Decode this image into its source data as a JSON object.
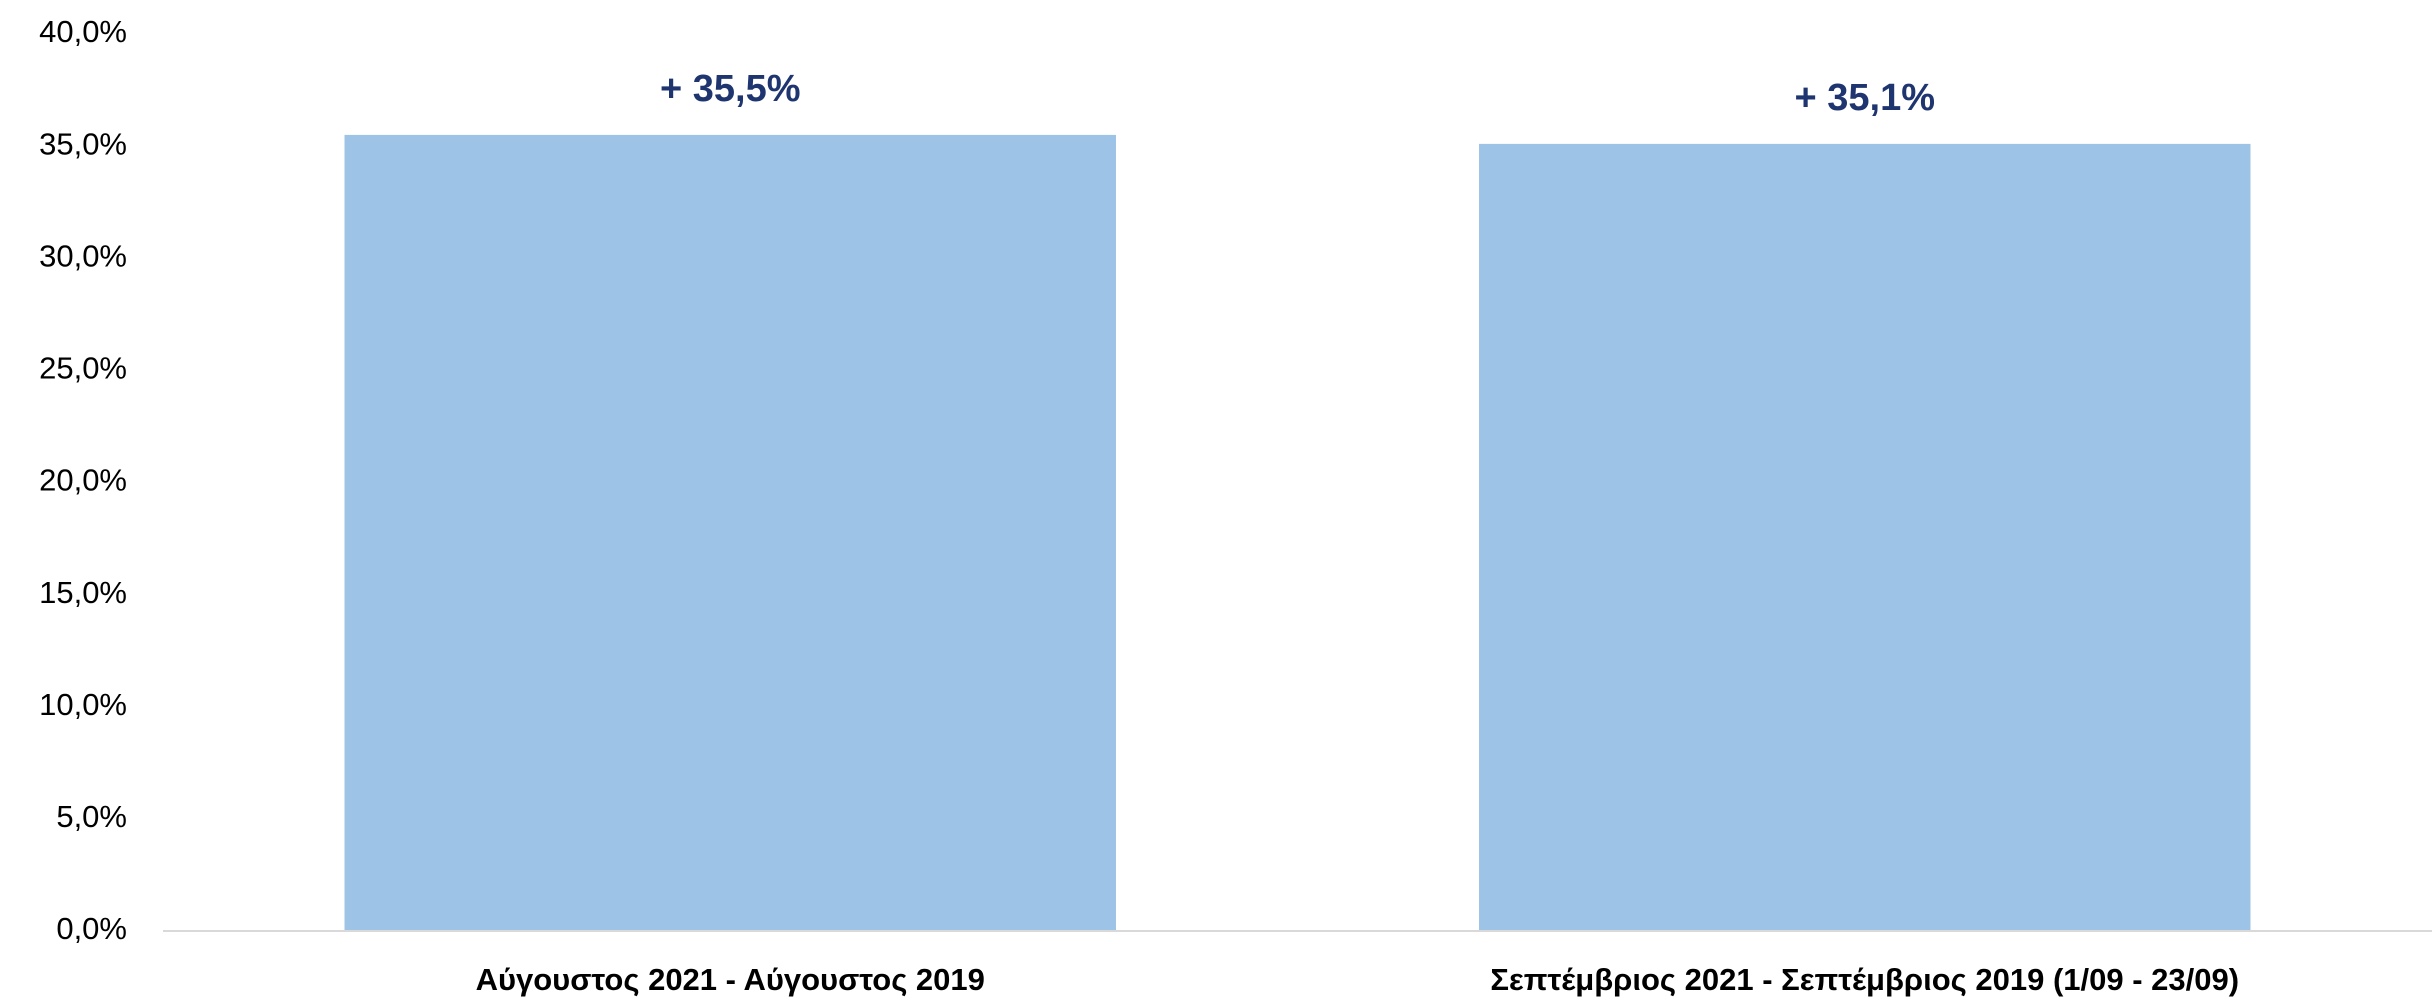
{
  "chart_data": {
    "type": "bar",
    "categories": [
      "Αύγουστος 2021 - Αύγουστος 2019",
      "Σεπτέμβριος 2021 - Σεπτέμβριος 2019 (1/09 - 23/09)"
    ],
    "values": [
      35.5,
      35.1
    ],
    "value_labels": [
      "+ 35,5%",
      "+ 35,1%"
    ],
    "color": "#9dc3e6",
    "ylim": [
      0,
      40
    ],
    "yticks": [
      {
        "value": 0,
        "label": "0,0%"
      },
      {
        "value": 5,
        "label": "5,0%"
      },
      {
        "value": 10,
        "label": "10,0%"
      },
      {
        "value": 15,
        "label": "15,0%"
      },
      {
        "value": 20,
        "label": "20,0%"
      },
      {
        "value": 25,
        "label": "25,0%"
      },
      {
        "value": 30,
        "label": "30,0%"
      },
      {
        "value": 35,
        "label": "35,0%"
      },
      {
        "value": 40,
        "label": "40,0%"
      }
    ],
    "grid": false
  }
}
